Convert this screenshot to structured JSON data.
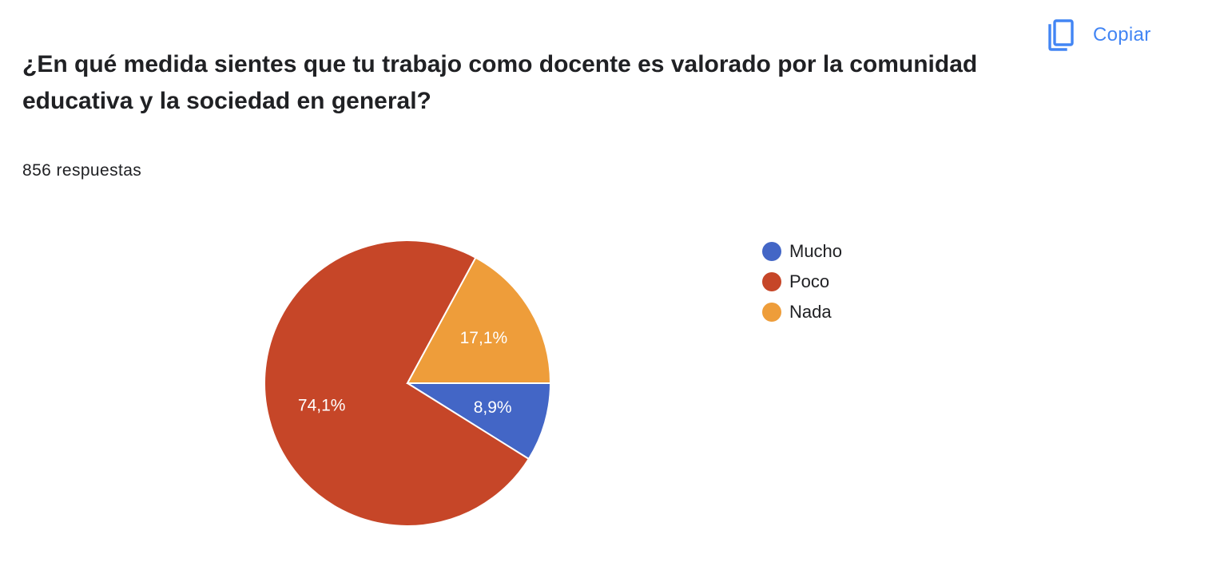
{
  "question": "¿En qué medida sientes que tu trabajo como docente es valorado por la comunidad educativa y la sociedad en general?",
  "responses_label": "856 respuestas",
  "copy_button": {
    "label": "Copiar",
    "icon": "copy-icon",
    "color": "#4285f4"
  },
  "chart_data": {
    "type": "pie",
    "title": "",
    "slices": [
      {
        "name": "Mucho",
        "value": 8.9,
        "label": "8,9%",
        "color": "#4366c6"
      },
      {
        "name": "Poco",
        "value": 74.1,
        "label": "74,1%",
        "color": "#c64628"
      },
      {
        "name": "Nada",
        "value": 17.1,
        "label": "17,1%",
        "color": "#ee9d3a"
      }
    ],
    "legend": {
      "position": "right",
      "entries": [
        "Mucho",
        "Poco",
        "Nada"
      ]
    }
  }
}
